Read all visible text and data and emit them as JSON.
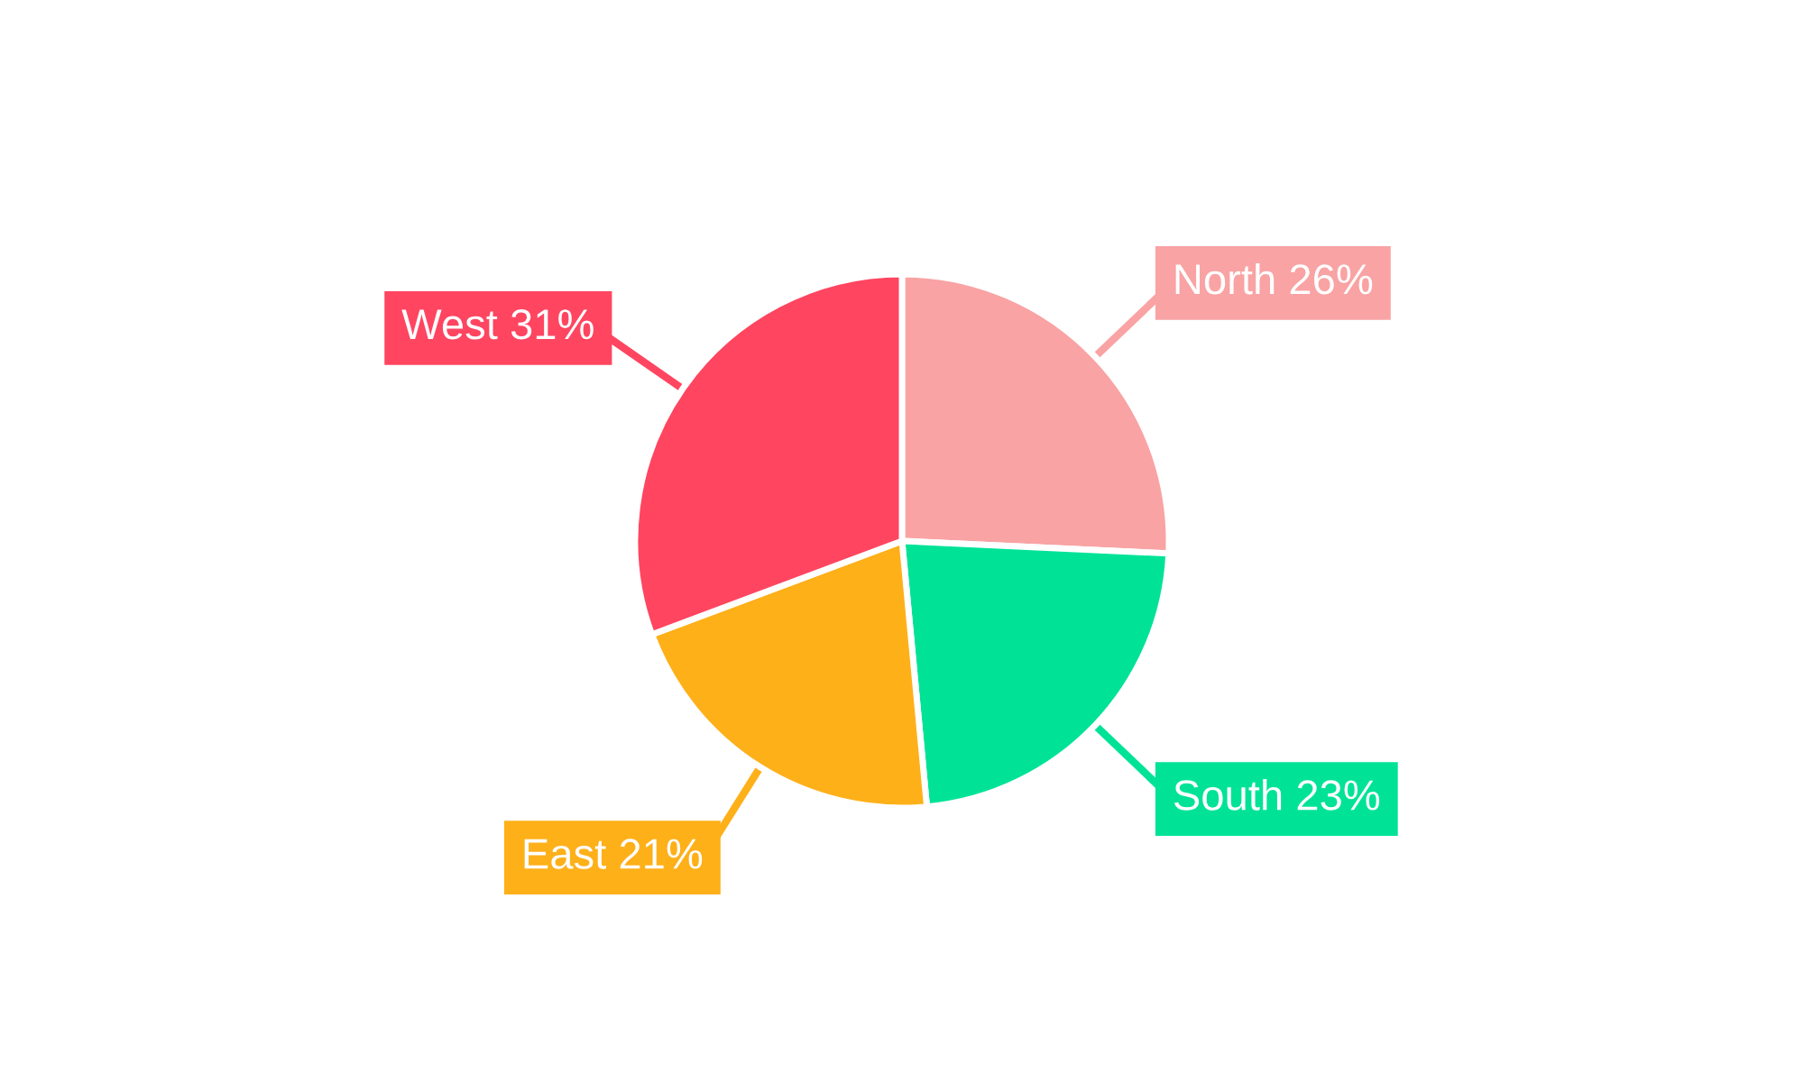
{
  "chart_data": {
    "type": "pie",
    "categories": [
      "North",
      "South",
      "East",
      "West"
    ],
    "values": [
      26,
      23,
      21,
      31
    ],
    "value_labels": [
      "26%",
      "23%",
      "21%",
      "31%"
    ],
    "colors": [
      "#f9a3a4",
      "#00e396",
      "#feb019",
      "#ff4560"
    ],
    "legend": false
  }
}
